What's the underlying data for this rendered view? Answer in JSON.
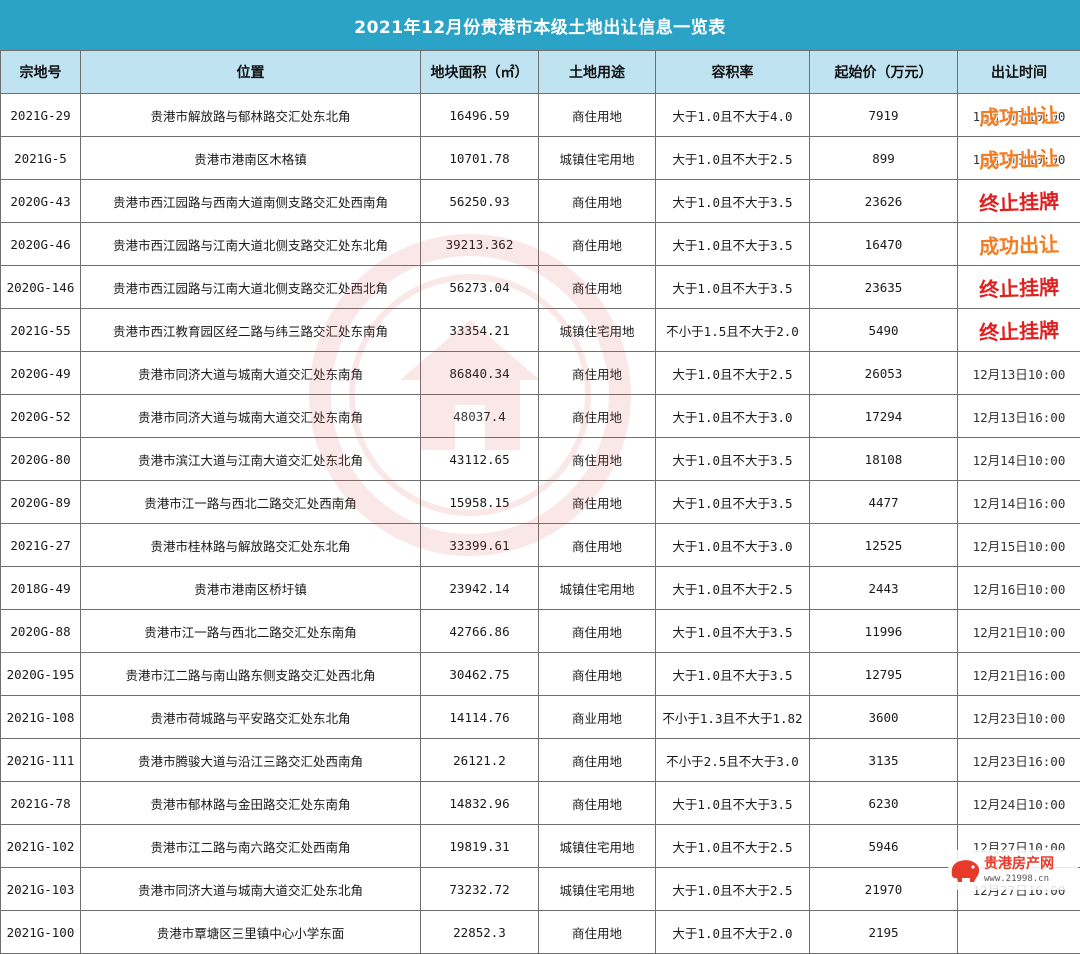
{
  "title": "2021年12月份贵港市本级土地出让信息一览表",
  "headers": [
    "宗地号",
    "位置",
    "地块面积（㎡）",
    "土地用途",
    "容积率",
    "起始价（万元）",
    "出让时间"
  ],
  "rows": [
    {
      "id": "2021G-29",
      "location": "贵港市解放路与郁林路交汇处东北角",
      "area": "16496.59",
      "use": "商住用地",
      "far": "大于1.0且不大于4.0",
      "price": "7919",
      "time": "12月10日10:00",
      "stamp": "成功出让",
      "stamp_color": "#f47b20"
    },
    {
      "id": "2021G-5",
      "location": "贵港市港南区木格镇",
      "area": "10701.78",
      "use": "城镇住宅用地",
      "far": "大于1.0且不大于2.5",
      "price": "899",
      "time": "12月10日10:00",
      "stamp": "成功出让",
      "stamp_color": "#f47b20"
    },
    {
      "id": "2020G-43",
      "location": "贵港市西江园路与西南大道南侧支路交汇处西南角",
      "area": "56250.93",
      "use": "商住用地",
      "far": "大于1.0且不大于3.5",
      "price": "23626",
      "time": "",
      "stamp": "终止挂牌",
      "stamp_color": "#e02020"
    },
    {
      "id": "2020G-46",
      "location": "贵港市西江园路与江南大道北侧支路交汇处东北角",
      "area": "39213.362",
      "use": "商住用地",
      "far": "大于1.0且不大于3.5",
      "price": "16470",
      "time": "",
      "stamp": "成功出让",
      "stamp_color": "#f47b20"
    },
    {
      "id": "2020G-146",
      "location": "贵港市西江园路与江南大道北侧支路交汇处西北角",
      "area": "56273.04",
      "use": "商住用地",
      "far": "大于1.0且不大于3.5",
      "price": "23635",
      "time": "",
      "stamp": "终止挂牌",
      "stamp_color": "#e02020"
    },
    {
      "id": "2021G-55",
      "location": "贵港市西江教育园区经二路与纬三路交汇处东南角",
      "area": "33354.21",
      "use": "城镇住宅用地",
      "far": "不小于1.5且不大于2.0",
      "price": "5490",
      "time": "",
      "stamp": "终止挂牌",
      "stamp_color": "#e02020"
    },
    {
      "id": "2020G-49",
      "location": "贵港市同济大道与城南大道交汇处东南角",
      "area": "86840.34",
      "use": "商住用地",
      "far": "大于1.0且不大于2.5",
      "price": "26053",
      "time": "12月13日10:00",
      "stamp": "",
      "stamp_color": ""
    },
    {
      "id": "2020G-52",
      "location": "贵港市同济大道与城南大道交汇处东南角",
      "area": "48037.4",
      "use": "商住用地",
      "far": "大于1.0且不大于3.0",
      "price": "17294",
      "time": "12月13日16:00",
      "stamp": "",
      "stamp_color": ""
    },
    {
      "id": "2020G-80",
      "location": "贵港市滨江大道与江南大道交汇处东北角",
      "area": "43112.65",
      "use": "商住用地",
      "far": "大于1.0且不大于3.5",
      "price": "18108",
      "time": "12月14日10:00",
      "stamp": "",
      "stamp_color": ""
    },
    {
      "id": "2020G-89",
      "location": "贵港市江一路与西北二路交汇处西南角",
      "area": "15958.15",
      "use": "商住用地",
      "far": "大于1.0且不大于3.5",
      "price": "4477",
      "time": "12月14日16:00",
      "stamp": "",
      "stamp_color": ""
    },
    {
      "id": "2021G-27",
      "location": "贵港市桂林路与解放路交汇处东北角",
      "area": "33399.61",
      "use": "商住用地",
      "far": "大于1.0且不大于3.0",
      "price": "12525",
      "time": "12月15日10:00",
      "stamp": "",
      "stamp_color": ""
    },
    {
      "id": "2018G-49",
      "location": "贵港市港南区桥圩镇",
      "area": "23942.14",
      "use": "城镇住宅用地",
      "far": "大于1.0且不大于2.5",
      "price": "2443",
      "time": "12月16日10:00",
      "stamp": "",
      "stamp_color": ""
    },
    {
      "id": "2020G-88",
      "location": "贵港市江一路与西北二路交汇处东南角",
      "area": "42766.86",
      "use": "商住用地",
      "far": "大于1.0且不大于3.5",
      "price": "11996",
      "time": "12月21日10:00",
      "stamp": "",
      "stamp_color": ""
    },
    {
      "id": "2020G-195",
      "location": "贵港市江二路与南山路东侧支路交汇处西北角",
      "area": "30462.75",
      "use": "商住用地",
      "far": "大于1.0且不大于3.5",
      "price": "12795",
      "time": "12月21日16:00",
      "stamp": "",
      "stamp_color": ""
    },
    {
      "id": "2021G-108",
      "location": "贵港市荷城路与平安路交汇处东北角",
      "area": "14114.76",
      "use": "商业用地",
      "far": "不小于1.3且不大于1.82",
      "price": "3600",
      "time": "12月23日10:00",
      "stamp": "",
      "stamp_color": ""
    },
    {
      "id": "2021G-111",
      "location": "贵港市腾骏大道与沿江三路交汇处西南角",
      "area": "26121.2",
      "use": "商住用地",
      "far": "不小于2.5且不大于3.0",
      "price": "3135",
      "time": "12月23日16:00",
      "stamp": "",
      "stamp_color": ""
    },
    {
      "id": "2021G-78",
      "location": "贵港市郁林路与金田路交汇处东南角",
      "area": "14832.96",
      "use": "商住用地",
      "far": "大于1.0且不大于3.5",
      "price": "6230",
      "time": "12月24日10:00",
      "stamp": "",
      "stamp_color": ""
    },
    {
      "id": "2021G-102",
      "location": "贵港市江二路与南六路交汇处西南角",
      "area": "19819.31",
      "use": "城镇住宅用地",
      "far": "大于1.0且不大于2.5",
      "price": "5946",
      "time": "12月27日10:00",
      "stamp": "",
      "stamp_color": ""
    },
    {
      "id": "2021G-103",
      "location": "贵港市同济大道与城南大道交汇处东北角",
      "area": "73232.72",
      "use": "城镇住宅用地",
      "far": "大于1.0且不大于2.5",
      "price": "21970",
      "time": "12月27日16:00",
      "stamp": "",
      "stamp_color": ""
    },
    {
      "id": "2021G-100",
      "location": "贵港市覃塘区三里镇中心小学东面",
      "area": "22852.3",
      "use": "商住用地",
      "far": "大于1.0且不大于2.0",
      "price": "2195",
      "time": "",
      "stamp": "",
      "stamp_color": ""
    }
  ],
  "brand": {
    "name": "贵港房产网",
    "url": "www.21998.cn"
  },
  "colors": {
    "title_bg": "#2aa3c7",
    "header_bg": "#bfe3f1",
    "watermark": "#d9534f"
  }
}
